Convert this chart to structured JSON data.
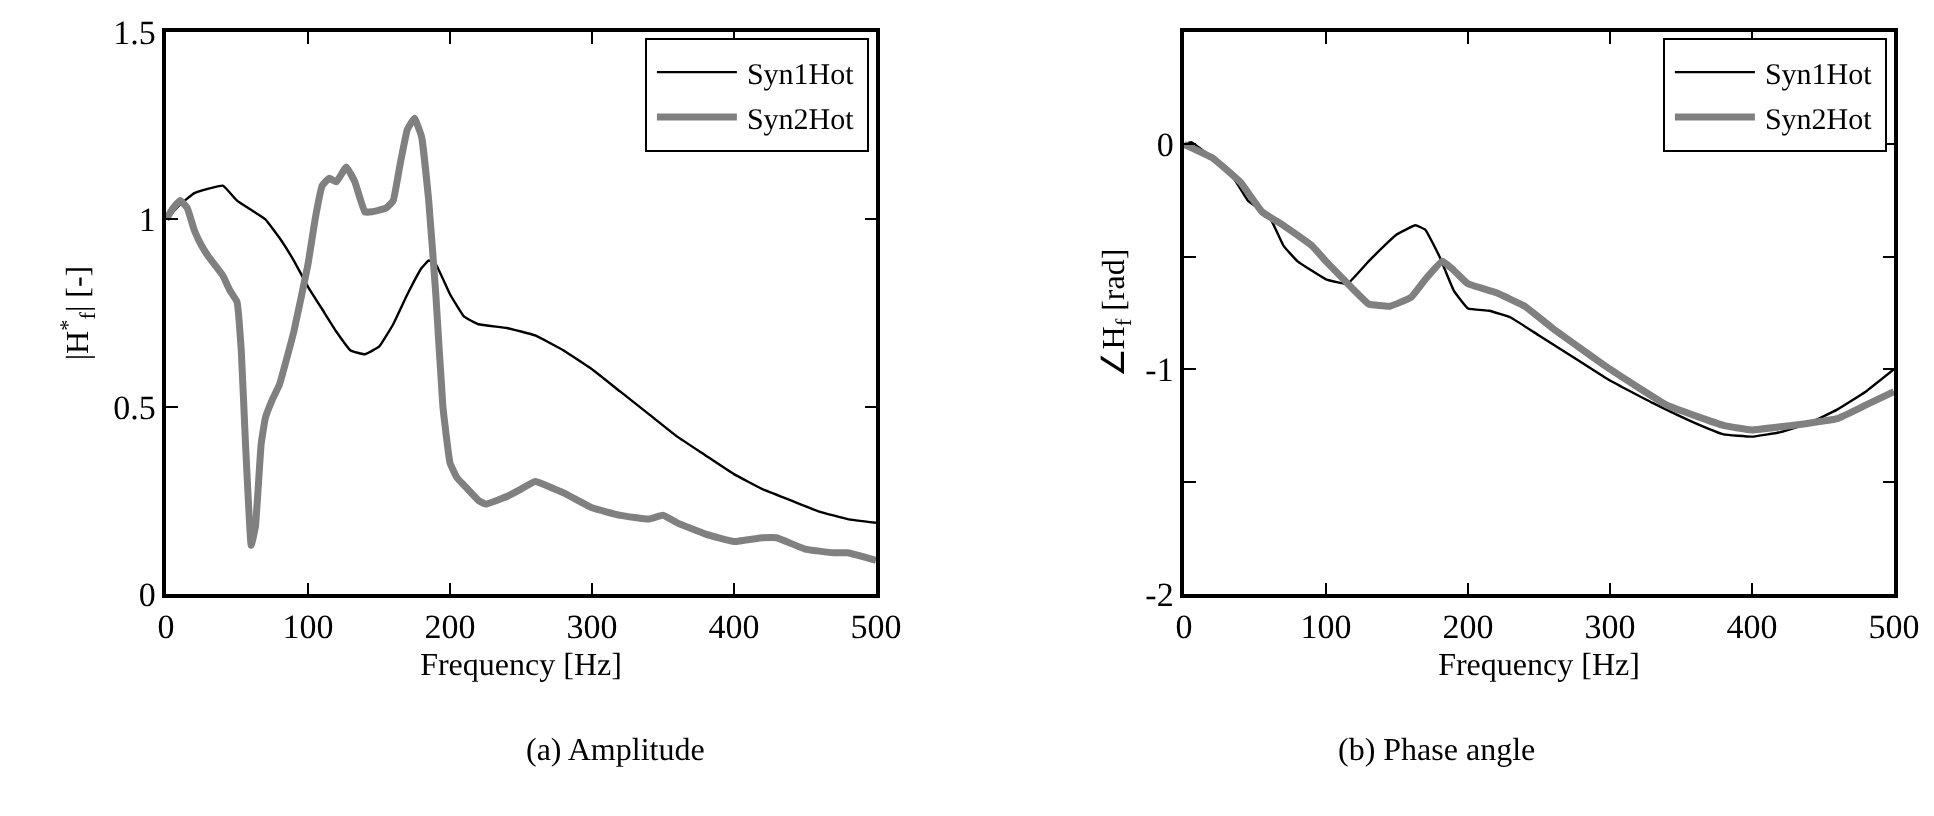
{
  "chart_data": [
    {
      "type": "line",
      "xlabel": "Frequency [Hz]",
      "ylabel": "|H$^{*}$$_{f}$| [-]",
      "annotations": [
        "(a) Amplitude"
      ],
      "xlim": [
        0,
        500
      ],
      "xticks": [
        0,
        100,
        200,
        300,
        400,
        500
      ],
      "ylim": [
        0,
        1.5
      ],
      "yticks": [
        0,
        0.5,
        1,
        1.5
      ],
      "legend": "top right",
      "marker": "none",
      "line_style": "solid",
      "series": [
        {
          "name": "Syn1Hot",
          "color": "#000000",
          "x": [
            0,
            10,
            20,
            40,
            50,
            62,
            70,
            80,
            90,
            100,
            110,
            120,
            130,
            140,
            150,
            160,
            170,
            180,
            185,
            190,
            200,
            210,
            220,
            240,
            260,
            280,
            300,
            320,
            340,
            360,
            380,
            400,
            420,
            440,
            460,
            480,
            500
          ],
          "values": [
            1.0,
            1.04,
            1.07,
            1.09,
            1.05,
            1.02,
            1.0,
            0.95,
            0.89,
            0.82,
            0.76,
            0.7,
            0.65,
            0.64,
            0.66,
            0.72,
            0.8,
            0.87,
            0.89,
            0.88,
            0.8,
            0.74,
            0.72,
            0.71,
            0.69,
            0.65,
            0.6,
            0.54,
            0.48,
            0.42,
            0.37,
            0.32,
            0.28,
            0.25,
            0.22,
            0.2,
            0.19
          ]
        },
        {
          "name": "Syn2Hot",
          "color": "#808080",
          "x": [
            0,
            5,
            10,
            15,
            20,
            25,
            30,
            40,
            45,
            50,
            53,
            56,
            60,
            63,
            67,
            70,
            75,
            80,
            90,
            100,
            105,
            110,
            115,
            120,
            127,
            133,
            140,
            145,
            155,
            160,
            165,
            170,
            175,
            180,
            185,
            190,
            195,
            200,
            205,
            210,
            220,
            225,
            240,
            250,
            260,
            280,
            300,
            320,
            340,
            350,
            360,
            380,
            400,
            420,
            430,
            450,
            470,
            480,
            500
          ],
          "values": [
            1.0,
            1.03,
            1.05,
            1.03,
            0.97,
            0.93,
            0.9,
            0.85,
            0.81,
            0.78,
            0.65,
            0.4,
            0.13,
            0.18,
            0.4,
            0.47,
            0.52,
            0.56,
            0.7,
            0.88,
            1.0,
            1.09,
            1.11,
            1.1,
            1.14,
            1.1,
            1.02,
            1.02,
            1.03,
            1.05,
            1.15,
            1.24,
            1.27,
            1.22,
            1.05,
            0.8,
            0.5,
            0.35,
            0.31,
            0.29,
            0.25,
            0.24,
            0.26,
            0.28,
            0.3,
            0.27,
            0.23,
            0.21,
            0.2,
            0.21,
            0.19,
            0.16,
            0.14,
            0.15,
            0.15,
            0.12,
            0.11,
            0.11,
            0.09
          ]
        }
      ]
    },
    {
      "type": "line",
      "xlabel": "Frequency [Hz]",
      "ylabel": "∠H$_{f}$ [rad]",
      "annotations": [
        "(b) Phase angle"
      ],
      "xlim": [
        0,
        500
      ],
      "xticks": [
        0,
        100,
        200,
        300,
        400,
        500
      ],
      "ylim": [
        -2,
        0.5
      ],
      "yticks": [
        -2,
        {
          "value": -1.5,
          "label": null
        },
        -1,
        {
          "value": -0.5,
          "label": null
        },
        0
      ],
      "legend": "top right",
      "marker": "none",
      "line_style": "solid",
      "series": [
        {
          "name": "Syn1Hot",
          "color": "#000000",
          "x": [
            0,
            5,
            20,
            35,
            45,
            60,
            70,
            80,
            100,
            115,
            130,
            150,
            163,
            170,
            180,
            190,
            200,
            215,
            230,
            250,
            280,
            300,
            330,
            360,
            380,
            400,
            420,
            440,
            460,
            480,
            500
          ],
          "values": [
            0.0,
            0.01,
            -0.06,
            -0.15,
            -0.25,
            -0.32,
            -0.45,
            -0.52,
            -0.6,
            -0.62,
            -0.52,
            -0.4,
            -0.36,
            -0.38,
            -0.5,
            -0.65,
            -0.73,
            -0.74,
            -0.77,
            -0.85,
            -0.97,
            -1.05,
            -1.15,
            -1.24,
            -1.29,
            -1.3,
            -1.28,
            -1.24,
            -1.18,
            -1.1,
            -1.0
          ]
        },
        {
          "name": "Syn2Hot",
          "color": "#808080",
          "x": [
            0,
            20,
            40,
            55,
            70,
            90,
            100,
            120,
            130,
            145,
            160,
            170,
            182,
            190,
            200,
            220,
            240,
            260,
            300,
            340,
            380,
            400,
            440,
            460,
            480,
            500
          ],
          "values": [
            0.0,
            -0.06,
            -0.17,
            -0.3,
            -0.36,
            -0.45,
            -0.52,
            -0.65,
            -0.71,
            -0.72,
            -0.68,
            -0.6,
            -0.52,
            -0.56,
            -0.62,
            -0.66,
            -0.72,
            -0.82,
            -1.0,
            -1.16,
            -1.25,
            -1.27,
            -1.24,
            -1.22,
            -1.16,
            -1.1
          ]
        }
      ]
    }
  ]
}
